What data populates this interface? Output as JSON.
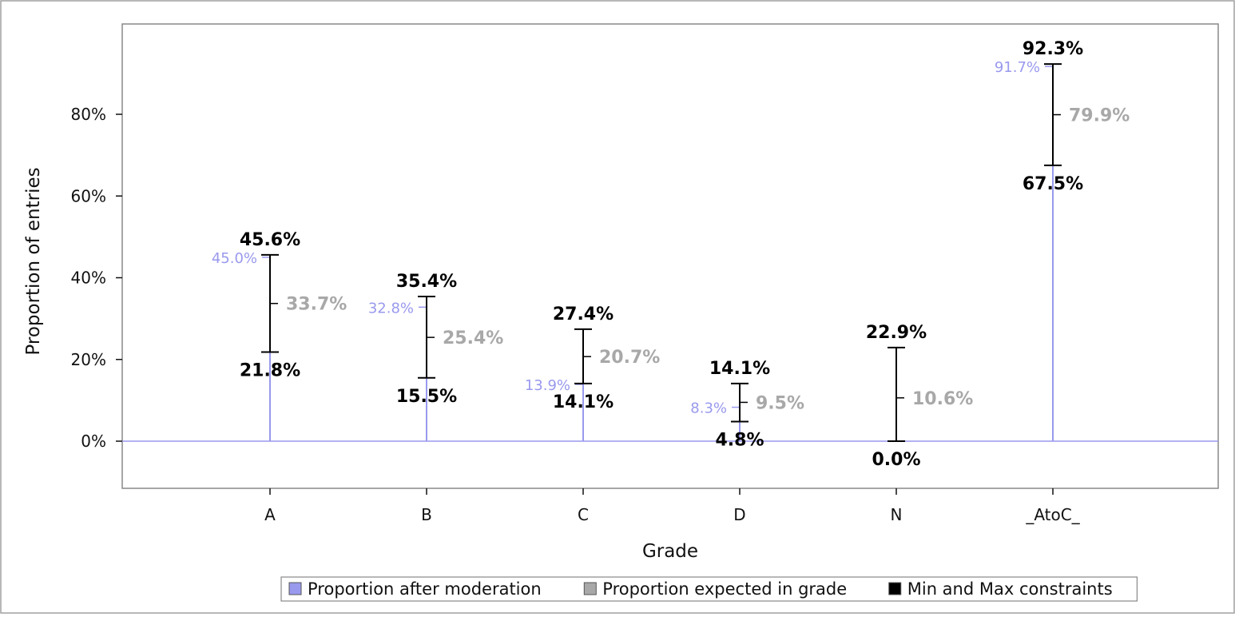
{
  "chart_data": {
    "type": "bar",
    "xlabel": "Grade",
    "ylabel": "Proportion of entries",
    "ylim": [
      -11.5,
      97
    ],
    "yticks": [
      "0%",
      "20%",
      "40%",
      "60%",
      "80%"
    ],
    "ytick_values": [
      0,
      20,
      40,
      60,
      80
    ],
    "categories": [
      "A",
      "B",
      "C",
      "D",
      "N",
      "_AtoC_"
    ],
    "series": [
      {
        "name": "Proportion after moderation",
        "color": "#9999ee",
        "values": [
          45.0,
          32.8,
          13.9,
          8.3,
          null,
          91.7
        ],
        "labels": [
          "45.0%",
          "32.8%",
          "13.9%",
          "8.3%",
          "",
          "91.7%"
        ]
      },
      {
        "name": "Proportion expected in grade",
        "color": "#a8a8a8",
        "values": [
          33.7,
          25.4,
          20.7,
          9.5,
          10.6,
          79.9
        ],
        "labels": [
          "33.7%",
          "25.4%",
          "20.7%",
          "9.5%",
          "10.6%",
          "79.9%"
        ]
      },
      {
        "name": "Min and Max constraints",
        "color": "#000000",
        "min": [
          21.8,
          15.5,
          14.1,
          4.8,
          0.0,
          67.5
        ],
        "max": [
          45.6,
          35.4,
          27.4,
          14.1,
          22.9,
          92.3
        ],
        "min_labels": [
          "21.8%",
          "15.5%",
          "14.1%",
          "4.8%",
          "0.0%",
          "67.5%"
        ],
        "max_labels": [
          "45.6%",
          "35.4%",
          "27.4%",
          "14.1%",
          "22.9%",
          "92.3%"
        ]
      }
    ],
    "grid": false,
    "legend_position": "bottom"
  }
}
